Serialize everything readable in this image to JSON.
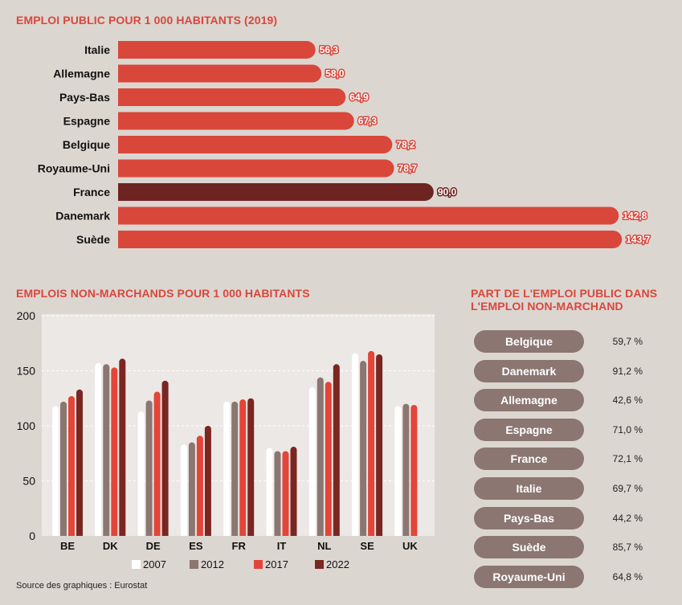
{
  "source": "Source des graphiques : Eurostat",
  "chart_data": [
    {
      "type": "bar",
      "orientation": "horizontal",
      "title": "EMPLOI PUBLIC POUR 1 000 HABITANTS (2019)",
      "categories": [
        "Italie",
        "Allemagne",
        "Pays-Bas",
        "Espagne",
        "Belgique",
        "Royaume-Uni",
        "France",
        "Danemark",
        "Suède"
      ],
      "values": [
        56.3,
        58.0,
        64.9,
        67.3,
        78.2,
        78.7,
        90.0,
        142.8,
        143.7
      ],
      "value_labels": [
        "56,3",
        "58,0",
        "64,9",
        "67,3",
        "78,2",
        "78,7",
        "90,0",
        "142,8",
        "143,7"
      ],
      "highlight": "France",
      "colors": {
        "default": "#d9473b",
        "highlight": "#6e2521"
      }
    },
    {
      "type": "bar",
      "title": "EMPLOIS NON-MARCHANDS POUR 1 000 HABITANTS",
      "categories": [
        "BE",
        "DK",
        "DE",
        "ES",
        "FR",
        "IT",
        "NL",
        "SE",
        "UK"
      ],
      "yticks": [
        "0",
        "50",
        "100",
        "150",
        "200"
      ],
      "ylim": [
        0,
        200
      ],
      "grid": true,
      "series": [
        {
          "name": "2007",
          "color": "#ffffff",
          "values": [
            118,
            157,
            113,
            83,
            122,
            80,
            135,
            166,
            118
          ]
        },
        {
          "name": "2012",
          "color": "#8b7672",
          "values": [
            122,
            156,
            123,
            85,
            122,
            77,
            144,
            159,
            120
          ]
        },
        {
          "name": "2017",
          "color": "#e24539",
          "values": [
            127,
            153,
            131,
            91,
            124,
            77,
            140,
            168,
            119
          ]
        },
        {
          "name": "2022",
          "color": "#7a2622",
          "values": [
            133,
            161,
            141,
            100,
            125,
            81,
            156,
            165,
            null
          ]
        }
      ]
    },
    {
      "type": "table",
      "title": "PART DE L'EMPLOI PUBLIC DANS L'EMPLOI NON-MARCHAND",
      "rows": [
        {
          "country": "Belgique",
          "value": "59,7 %"
        },
        {
          "country": "Danemark",
          "value": "91,2 %"
        },
        {
          "country": "Allemagne",
          "value": "42,6 %"
        },
        {
          "country": "Espagne",
          "value": "71,0 %"
        },
        {
          "country": "France",
          "value": "72,1 %"
        },
        {
          "country": "Italie",
          "value": "69,7 %"
        },
        {
          "country": "Pays-Bas",
          "value": "44,2 %"
        },
        {
          "country": "Suède",
          "value": "85,7 %"
        },
        {
          "country": "Royaume-Uni",
          "value": "64,8 %"
        }
      ]
    }
  ]
}
